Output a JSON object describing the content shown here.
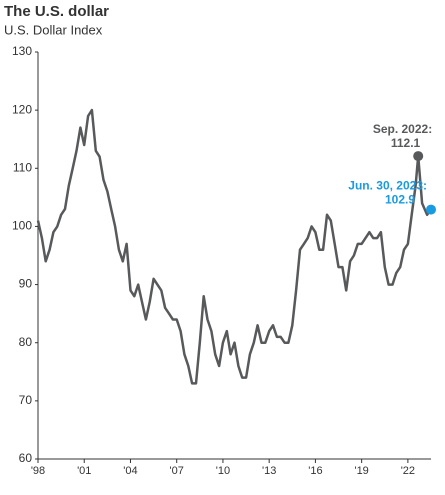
{
  "chart_data": {
    "type": "line",
    "title": "The U.S. dollar",
    "subtitle": "U.S. Dollar Index",
    "x": [
      1998,
      1998.25,
      1998.5,
      1998.75,
      1999,
      1999.25,
      1999.5,
      1999.75,
      2000,
      2000.25,
      2000.5,
      2000.75,
      2001,
      2001.25,
      2001.5,
      2001.75,
      2002,
      2002.25,
      2002.5,
      2002.75,
      2003,
      2003.25,
      2003.5,
      2003.75,
      2004,
      2004.25,
      2004.5,
      2004.75,
      2005,
      2005.25,
      2005.5,
      2005.75,
      2006,
      2006.25,
      2006.5,
      2006.75,
      2007,
      2007.25,
      2007.5,
      2007.75,
      2008,
      2008.25,
      2008.5,
      2008.75,
      2009,
      2009.25,
      2009.5,
      2009.75,
      2010,
      2010.25,
      2010.5,
      2010.75,
      2011,
      2011.25,
      2011.5,
      2011.75,
      2012,
      2012.25,
      2012.5,
      2012.75,
      2013,
      2013.25,
      2013.5,
      2013.75,
      2014,
      2014.25,
      2014.5,
      2014.75,
      2015,
      2015.25,
      2015.5,
      2015.75,
      2016,
      2016.25,
      2016.5,
      2016.75,
      2017,
      2017.25,
      2017.5,
      2017.75,
      2018,
      2018.25,
      2018.5,
      2018.75,
      2019,
      2019.25,
      2019.5,
      2019.75,
      2020,
      2020.25,
      2020.5,
      2020.75,
      2021,
      2021.25,
      2021.5,
      2021.75,
      2022,
      2022.25,
      2022.5,
      2022.67,
      2022.92,
      2023.25,
      2023.5
    ],
    "series": [
      {
        "name": "U.S. Dollar Index",
        "color": "#58595b",
        "values": [
          101,
          98,
          94,
          96,
          99,
          100,
          102,
          103,
          107,
          110,
          113,
          117,
          114,
          119,
          120,
          113,
          112,
          108,
          106,
          103,
          100,
          96,
          94,
          97,
          89,
          88,
          90,
          87,
          84,
          87,
          91,
          90,
          89,
          86,
          85,
          84,
          84,
          82,
          78,
          76,
          73,
          73,
          80,
          88,
          84,
          82,
          78,
          76,
          80,
          82,
          78,
          80,
          76,
          74,
          74,
          78,
          80,
          83,
          80,
          80,
          82,
          83,
          81,
          81,
          80,
          80,
          83,
          89,
          96,
          97,
          98,
          100,
          99,
          96,
          96,
          102,
          101,
          97,
          93,
          93,
          89,
          94,
          95,
          97,
          97,
          98,
          99,
          98,
          98,
          99,
          93,
          90,
          90,
          92,
          93,
          96,
          97,
          102,
          107,
          112.1,
          104,
          102,
          102.9
        ]
      }
    ],
    "annotations": [
      {
        "label": "Sep. 2022:",
        "value": 112.1,
        "color": "#58595b"
      },
      {
        "label": "Jun. 30, 2023:",
        "value": 102.9,
        "color": "#1a9ae0"
      }
    ],
    "xlim": [
      1998,
      2023.5
    ],
    "xticks": [
      {
        "value": 1998,
        "label": "'98"
      },
      {
        "value": 2001,
        "label": "'01"
      },
      {
        "value": 2004,
        "label": "'04"
      },
      {
        "value": 2007,
        "label": "'07"
      },
      {
        "value": 2010,
        "label": "'10"
      },
      {
        "value": 2013,
        "label": "'13"
      },
      {
        "value": 2016,
        "label": "'16"
      },
      {
        "value": 2019,
        "label": "'19"
      },
      {
        "value": 2022,
        "label": "'22"
      }
    ],
    "ylim": [
      60,
      130
    ],
    "yticks": [
      60,
      70,
      80,
      90,
      100,
      110,
      120,
      130
    ]
  }
}
